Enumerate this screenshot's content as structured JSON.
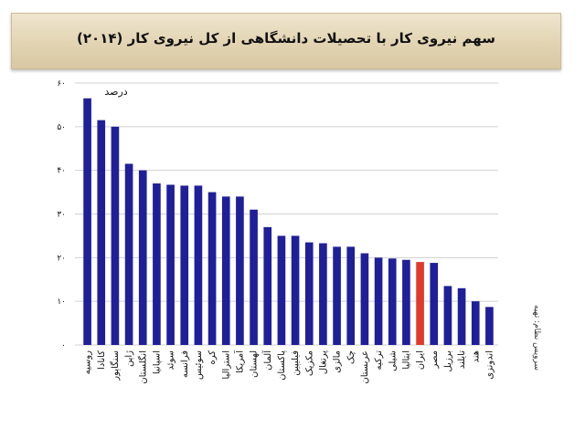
{
  "title": "سهم نیروی کار با تحصیلات دانشگاهی از کل نیروی کار (۲۰۱۴)",
  "source": "سرویس نظام: تهیه",
  "colors": {
    "bar": "#1f1f99",
    "highlight": "#e03a2b",
    "grid": "#d0d0d0"
  },
  "chart_data": {
    "type": "bar",
    "title": "سهم نیروی کار با تحصیلات دانشگاهی از کل نیروی کار (۲۰۱۴)",
    "xlabel": "",
    "ylabel": "درصد",
    "unit_label": "درصد",
    "ylim": [
      0,
      60
    ],
    "yticks": [
      0,
      10,
      20,
      30,
      40,
      50,
      60
    ],
    "ytick_labels": [
      "۰",
      "۱۰",
      "۲۰",
      "۳۰",
      "۴۰",
      "۵۰",
      "۶۰"
    ],
    "grid": true,
    "highlight_category": "ایران",
    "categories": [
      "روسیه",
      "کانادا",
      "سنگاپور",
      "ژاپن",
      "انگلستان",
      "اسپانیا",
      "سوئد",
      "فرانسه",
      "سوئیس",
      "کره",
      "استرالیا",
      "آمریکا",
      "لهستان",
      "آلمان",
      "پاکستان",
      "فیلیپین",
      "مکزیک",
      "پرتغال",
      "مالزی",
      "چک",
      "عربستان",
      "ترکیه",
      "شیلی",
      "ایتالیا",
      "ایران",
      "مصر",
      "برزیل",
      "تایلند",
      "هند",
      "اندونزی"
    ],
    "values": [
      56.5,
      51.5,
      50,
      41.5,
      40,
      37,
      36.7,
      36.5,
      36.5,
      35,
      34,
      34,
      31,
      27,
      25,
      25,
      23.5,
      23.3,
      22.5,
      22.5,
      21,
      20,
      19.8,
      19.5,
      19,
      18.8,
      13.5,
      13,
      10,
      8.7
    ]
  }
}
